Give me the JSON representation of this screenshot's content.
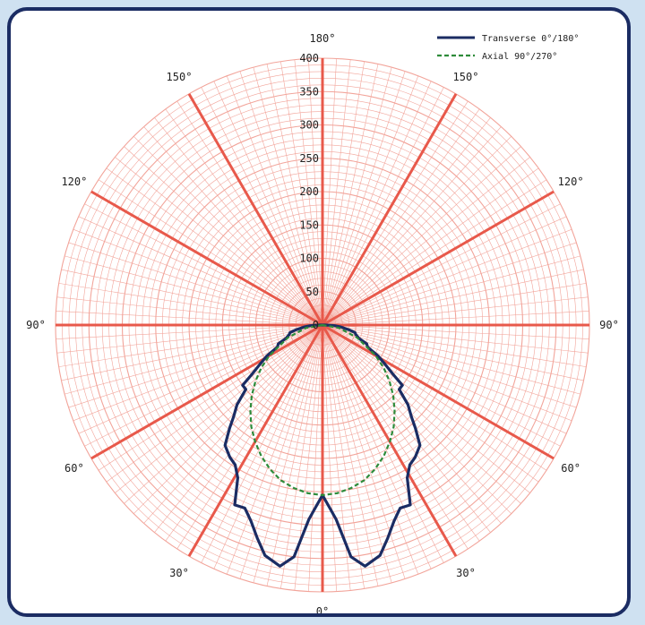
{
  "chart_data": {
    "type": "polar",
    "title": "",
    "radial_ticks": [
      0,
      50,
      100,
      150,
      200,
      250,
      300,
      350,
      400
    ],
    "radial_max": 400,
    "angle_labels": [
      "0°",
      "30°",
      "60°",
      "90°",
      "120°",
      "150°",
      "180°",
      "150°",
      "120°",
      "90°",
      "60°",
      "30°"
    ],
    "grid": true,
    "legend_position": "top-right",
    "colors": {
      "grid": "#f2a49a",
      "spoke": "#e8594b",
      "transverse": "#1b2c63",
      "axial": "#2e8b3a"
    },
    "series": [
      {
        "name": "Transverse 0°/180°",
        "style": "solid",
        "points": [
          [
            -90,
            5
          ],
          [
            -87,
            18
          ],
          [
            -84,
            28
          ],
          [
            -80,
            40
          ],
          [
            -77,
            50
          ],
          [
            -74,
            52
          ],
          [
            -70,
            58
          ],
          [
            -67,
            72
          ],
          [
            -64,
            75
          ],
          [
            -61,
            95
          ],
          [
            -58,
            110
          ],
          [
            -55,
            130
          ],
          [
            -53,
            150
          ],
          [
            -50,
            150
          ],
          [
            -47,
            175
          ],
          [
            -44,
            192
          ],
          [
            -42,
            208
          ],
          [
            -39,
            232
          ],
          [
            -35,
            242
          ],
          [
            -32,
            247
          ],
          [
            -29,
            262
          ],
          [
            -26,
            300
          ],
          [
            -23,
            298
          ],
          [
            -20,
            313
          ],
          [
            -17,
            334
          ],
          [
            -14,
            356
          ],
          [
            -10,
            367
          ],
          [
            -7,
            350
          ],
          [
            -4,
            292
          ],
          [
            -2,
            272
          ],
          [
            0,
            255
          ],
          [
            2,
            272
          ],
          [
            4,
            292
          ],
          [
            7,
            350
          ],
          [
            10,
            367
          ],
          [
            14,
            356
          ],
          [
            17,
            334
          ],
          [
            20,
            313
          ],
          [
            23,
            298
          ],
          [
            26,
            300
          ],
          [
            29,
            262
          ],
          [
            32,
            247
          ],
          [
            35,
            242
          ],
          [
            39,
            232
          ],
          [
            42,
            208
          ],
          [
            44,
            192
          ],
          [
            47,
            175
          ],
          [
            50,
            150
          ],
          [
            53,
            150
          ],
          [
            55,
            130
          ],
          [
            58,
            110
          ],
          [
            61,
            95
          ],
          [
            64,
            75
          ],
          [
            67,
            72
          ],
          [
            70,
            58
          ],
          [
            74,
            52
          ],
          [
            77,
            50
          ],
          [
            80,
            40
          ],
          [
            84,
            28
          ],
          [
            87,
            18
          ],
          [
            90,
            5
          ]
        ]
      },
      {
        "name": "Axial 90°/270°",
        "style": "dashed",
        "points": [
          [
            -90,
            0
          ],
          [
            -80,
            25
          ],
          [
            -70,
            55
          ],
          [
            -60,
            92
          ],
          [
            -55,
            112
          ],
          [
            -50,
            131
          ],
          [
            -45,
            150
          ],
          [
            -40,
            168
          ],
          [
            -35,
            186
          ],
          [
            -30,
            202
          ],
          [
            -25,
            217
          ],
          [
            -20,
            230
          ],
          [
            -15,
            241
          ],
          [
            -10,
            248
          ],
          [
            -5,
            253
          ],
          [
            0,
            255
          ],
          [
            5,
            253
          ],
          [
            10,
            248
          ],
          [
            15,
            241
          ],
          [
            20,
            230
          ],
          [
            25,
            217
          ],
          [
            30,
            202
          ],
          [
            35,
            186
          ],
          [
            40,
            168
          ],
          [
            45,
            150
          ],
          [
            50,
            131
          ],
          [
            55,
            112
          ],
          [
            60,
            92
          ],
          [
            70,
            55
          ],
          [
            80,
            25
          ],
          [
            90,
            0
          ]
        ]
      }
    ]
  }
}
